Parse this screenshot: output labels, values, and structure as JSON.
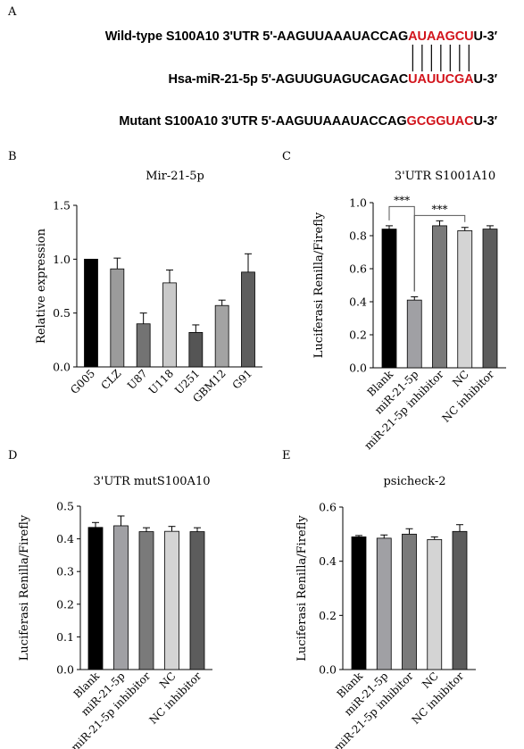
{
  "panels": {
    "A": "A",
    "B": "B",
    "C": "C",
    "D": "D",
    "E": "E"
  },
  "sequences": {
    "wild": {
      "prefix": "Wild-type S100A10 3'UTR 5'-AAGUUAAAUACCAG",
      "highlight": "AUAAGCU",
      "suffix": "U-3′"
    },
    "mir": {
      "prefix": "Hsa-miR-21-5p 5'-AGUUGUAGUCAGAC",
      "highlight": "UAUUCGA",
      "suffix": "U-3′"
    },
    "mutant": {
      "prefix": "Mutant S100A10 3'UTR 5'-AAGUUAAAUACCAG",
      "highlight": "GCGGUAC",
      "suffix": "U-3′"
    },
    "pair_count": 7
  },
  "chart_data": [
    {
      "id": "B",
      "type": "bar",
      "title": "Mir-21-5p",
      "xlabel": "",
      "ylabel": "Relative   expression",
      "categories": [
        "G005",
        "CLZ",
        "U87",
        "U118",
        "U251",
        "GBM12",
        "G91"
      ],
      "values": [
        1.0,
        0.91,
        0.4,
        0.78,
        0.32,
        0.57,
        0.88
      ],
      "errors": [
        0.0,
        0.1,
        0.1,
        0.12,
        0.07,
        0.05,
        0.17
      ],
      "colors": [
        "#000000",
        "#9b9b9b",
        "#737373",
        "#c9c9c9",
        "#555555",
        "#a3a3a3",
        "#5e5e5e"
      ],
      "ylim": [
        0,
        1.5
      ],
      "yticks": [
        0.0,
        0.5,
        1.0,
        1.5
      ],
      "tick_labels": [
        "0.0",
        "0.5",
        "1.0",
        "1.5"
      ]
    },
    {
      "id": "C",
      "type": "bar",
      "title": "3'UTR S1001A10",
      "xlabel": "",
      "ylabel": "Luciferasi   Renilla/Firefly",
      "categories": [
        "Blank",
        "miR-21-5p",
        "miR-21-5p inhibitor",
        "NC",
        "NC inhibitor"
      ],
      "values": [
        0.84,
        0.41,
        0.86,
        0.83,
        0.84
      ],
      "errors": [
        0.02,
        0.02,
        0.03,
        0.02,
        0.02
      ],
      "colors": [
        "#000000",
        "#a0a0a4",
        "#7a7a7a",
        "#d4d4d4",
        "#5c5c5c"
      ],
      "ylim": [
        0,
        1.0
      ],
      "yticks": [
        0.0,
        0.2,
        0.4,
        0.6,
        0.8,
        1.0
      ],
      "tick_labels": [
        "0.0",
        "0.2",
        "0.4",
        "0.6",
        "0.8",
        "1.0"
      ],
      "significance": [
        {
          "from": 0,
          "to": 1,
          "label": "***"
        },
        {
          "from": 1,
          "to": 3,
          "label": "***"
        }
      ]
    },
    {
      "id": "D",
      "type": "bar",
      "title": "3'UTR mutS100A10",
      "xlabel": "",
      "ylabel": "Luciferasi   Renilla/Firefly",
      "categories": [
        "Blank",
        "miR-21-5p",
        "miR-21-5p inhibitor",
        "NC",
        "NC inhibitor"
      ],
      "values": [
        0.435,
        0.44,
        0.422,
        0.423,
        0.422
      ],
      "errors": [
        0.015,
        0.03,
        0.012,
        0.015,
        0.012
      ],
      "colors": [
        "#000000",
        "#a0a0a4",
        "#7a7a7a",
        "#d4d4d4",
        "#5c5c5c"
      ],
      "ylim": [
        0,
        0.5
      ],
      "yticks": [
        0.0,
        0.1,
        0.2,
        0.3,
        0.4,
        0.5
      ],
      "tick_labels": [
        "0.0",
        "0.1",
        "0.2",
        "0.3",
        "0.4",
        "0.5"
      ]
    },
    {
      "id": "E",
      "type": "bar",
      "title": "psicheck-2",
      "xlabel": "",
      "ylabel": "Luciferasi   Renilla/Firefly",
      "categories": [
        "Blank",
        "miR-21-5p",
        "miR-21-5p inhibitor",
        "NC",
        "NC inhibitor"
      ],
      "values": [
        0.49,
        0.485,
        0.5,
        0.48,
        0.51
      ],
      "errors": [
        0.005,
        0.012,
        0.02,
        0.01,
        0.025
      ],
      "colors": [
        "#000000",
        "#a0a0a4",
        "#7a7a7a",
        "#d4d4d4",
        "#5c5c5c"
      ],
      "ylim": [
        0,
        0.6
      ],
      "yticks": [
        0.0,
        0.2,
        0.4,
        0.6
      ],
      "tick_labels": [
        "0.0",
        "0.2",
        "0.4",
        "0.6"
      ]
    }
  ]
}
